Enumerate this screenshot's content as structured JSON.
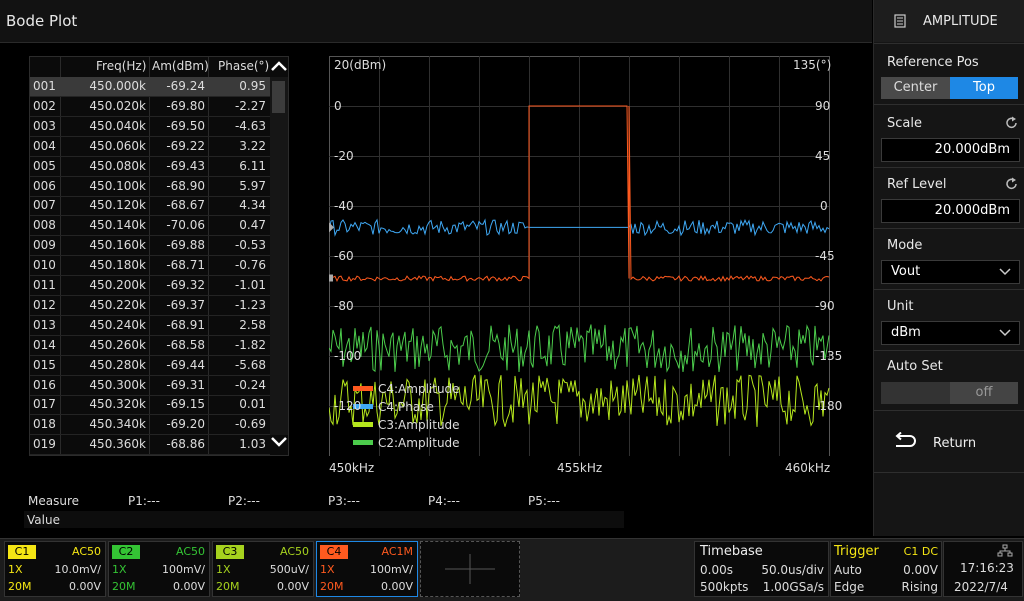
{
  "header": {
    "title": "Bode Plot"
  },
  "table": {
    "columns": [
      "Freq(Hz)",
      "Am(dBm)",
      "Phase(°)"
    ],
    "rows": [
      [
        "001",
        "450.000k",
        "-69.24",
        "0.95"
      ],
      [
        "002",
        "450.020k",
        "-69.80",
        "-2.27"
      ],
      [
        "003",
        "450.040k",
        "-69.50",
        "-4.63"
      ],
      [
        "004",
        "450.060k",
        "-69.22",
        "3.22"
      ],
      [
        "005",
        "450.080k",
        "-69.43",
        "6.11"
      ],
      [
        "006",
        "450.100k",
        "-68.90",
        "5.97"
      ],
      [
        "007",
        "450.120k",
        "-68.67",
        "4.34"
      ],
      [
        "008",
        "450.140k",
        "-70.06",
        "0.47"
      ],
      [
        "009",
        "450.160k",
        "-69.88",
        "-0.53"
      ],
      [
        "010",
        "450.180k",
        "-68.71",
        "-0.76"
      ],
      [
        "011",
        "450.200k",
        "-69.32",
        "-1.01"
      ],
      [
        "012",
        "450.220k",
        "-69.37",
        "-1.23"
      ],
      [
        "013",
        "450.240k",
        "-68.91",
        "2.58"
      ],
      [
        "014",
        "450.260k",
        "-68.58",
        "-1.82"
      ],
      [
        "015",
        "450.280k",
        "-69.44",
        "-5.68"
      ],
      [
        "016",
        "450.300k",
        "-69.31",
        "-0.24"
      ],
      [
        "017",
        "450.320k",
        "-69.15",
        "0.01"
      ],
      [
        "018",
        "450.340k",
        "-69.20",
        "-0.69"
      ],
      [
        "019",
        "450.360k",
        "-68.86",
        "1.03"
      ]
    ]
  },
  "chart_data": {
    "type": "line",
    "left_axis_label": "20(dBm)",
    "right_axis_label": "135(°)",
    "left_ticks": [
      "0",
      "-20",
      "-40",
      "-60",
      "-80",
      "-100",
      "-120"
    ],
    "right_ticks": [
      "90",
      "45",
      "0",
      "-45",
      "-90",
      "-135",
      "-180"
    ],
    "x_ticks": [
      "450kHz",
      "455kHz",
      "460kHz"
    ],
    "xlim_khz": [
      450,
      460
    ],
    "ylim_dbm": [
      -140,
      20
    ],
    "series": [
      {
        "name": "C4:Amplitude",
        "color": "#ff5a1f",
        "description": "about -69 dBm, step to 0 dBm between 454 and 456 kHz"
      },
      {
        "name": "C4:Phase",
        "color": "#3fa9f5",
        "description": "about 0° noisy, flat 0° between 454 and 456 kHz"
      },
      {
        "name": "C3:Amplitude",
        "color": "#b5e61d",
        "description": "noise around -118 dBm"
      },
      {
        "name": "C2:Amplitude",
        "color": "#4ccc4c",
        "description": "noise around -97 dBm"
      }
    ]
  },
  "measure": {
    "label": "Measure",
    "p1": "P1:---",
    "p2": "P2:---",
    "p3": "P3:---",
    "p4": "P4:---",
    "p5": "P5:---",
    "value_label": "Value"
  },
  "panel": {
    "title": "AMPLITUDE",
    "ref_pos_label": "Reference Pos",
    "ref_pos_options": [
      "Center",
      "Top"
    ],
    "ref_pos_selected": "Top",
    "scale_label": "Scale",
    "scale_value": "20.000dBm",
    "ref_level_label": "Ref Level",
    "ref_level_value": "20.000dBm",
    "mode_label": "Mode",
    "mode_value": "Vout",
    "unit_label": "Unit",
    "unit_value": "dBm",
    "auto_set_label": "Auto Set",
    "auto_set_value": "off",
    "return_label": "Return"
  },
  "channels": [
    {
      "tag": "C1",
      "coupling": "AC50",
      "probe": "1X",
      "scale": "10.0mV/",
      "bw": "20M",
      "offset": "0.00V",
      "color": "#f5e614",
      "text_color": "#f5e614"
    },
    {
      "tag": "C2",
      "coupling": "AC50",
      "probe": "1X",
      "scale": "100mV/",
      "bw": "20M",
      "offset": "0.00V",
      "color": "#34c434",
      "text_color": "#34c434"
    },
    {
      "tag": "C3",
      "coupling": "AC50",
      "probe": "1X",
      "scale": "500uV/",
      "bw": "20M",
      "offset": "0.00V",
      "color": "#a6d21e",
      "text_color": "#a6d21e"
    },
    {
      "tag": "C4",
      "coupling": "AC1M",
      "probe": "1X",
      "scale": "100mV/",
      "bw": "20M",
      "offset": "0.00V",
      "color": "#ff5a1f",
      "text_color": "#ff5a1f"
    }
  ],
  "timebase": {
    "label": "Timebase",
    "delay": "0.00s",
    "scale": "50.0us/div",
    "memory": "500kpts",
    "rate": "1.00GSa/s"
  },
  "trigger": {
    "label": "Trigger",
    "source": "C1 DC",
    "mode": "Auto",
    "level": "0.00V",
    "type": "Edge",
    "slope": "Rising"
  },
  "clock": {
    "time": "17:16:23",
    "date": "2022/7/4"
  }
}
